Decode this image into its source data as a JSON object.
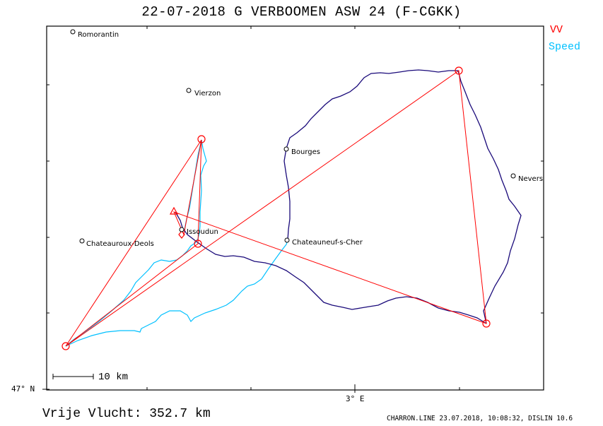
{
  "title": "22-07-2018  G VERBOOMEN   ASW 24 (F-CGKK)",
  "legend": {
    "items": [
      {
        "label": "VV",
        "color": "#ff0000"
      },
      {
        "label": "Speed",
        "color": "#00c0ff"
      }
    ]
  },
  "towns": [
    {
      "name": "Romorantin"
    },
    {
      "name": "Vierzon"
    },
    {
      "name": "Bourges"
    },
    {
      "name": "Nevers"
    },
    {
      "name": "Issoudun"
    },
    {
      "name": "Chateauroux-Deols"
    },
    {
      "name": "Chateauneuf-s-Cher"
    }
  ],
  "axes": {
    "y_label": "47° N",
    "x_label": "3° E"
  },
  "scale_bar": {
    "label": "10 km"
  },
  "distance": "Vrije Vlucht:  352.7 km",
  "footer": "CHARRON.LINE 23.07.2018, 10:08:32, DISLIN 10.6",
  "colors": {
    "task": "#ff0000",
    "track": "#1a0a7a",
    "speed_track": "#00c0ff",
    "frame": "#000000"
  }
}
